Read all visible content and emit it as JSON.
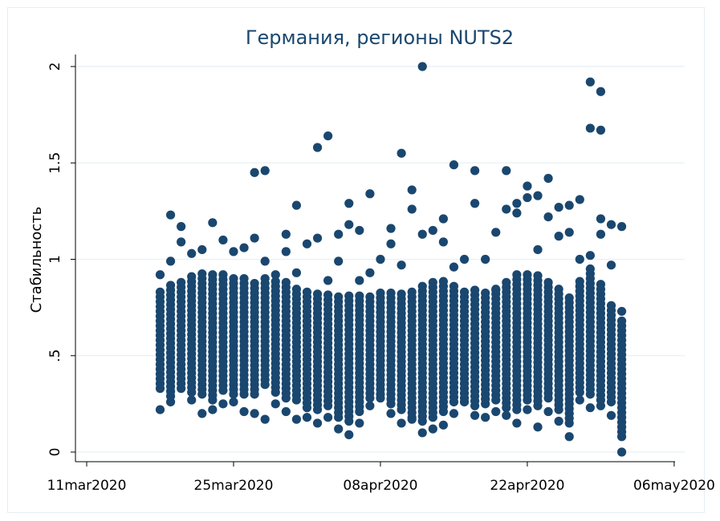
{
  "chart_data": {
    "type": "scatter",
    "title": "Германия, регионы NUTS2",
    "ylabel": "Стабильность",
    "xlabel": "",
    "x_ticks": [
      "11mar2020",
      "25mar2020",
      "08apr2020",
      "22apr2020",
      "06may2020"
    ],
    "y_ticks": [
      "0",
      ".5",
      "1",
      "1.5",
      "2"
    ],
    "xlim": [
      "2020-03-10",
      "2020-05-06"
    ],
    "ylim": [
      0,
      2.05
    ],
    "grid": "horizontal",
    "marker_color": "#1a476f",
    "series": [
      {
        "points": [
          [
            "2020-03-18",
            0.92
          ],
          [
            "2020-03-18",
            0.22
          ],
          [
            "2020-03-19",
            1.23
          ],
          [
            "2020-03-19",
            0.99
          ],
          [
            "2020-03-19",
            0.26
          ],
          [
            "2020-03-20",
            1.17
          ],
          [
            "2020-03-20",
            1.09
          ],
          [
            "2020-03-21",
            1.03
          ],
          [
            "2020-03-21",
            0.27
          ],
          [
            "2020-03-22",
            1.05
          ],
          [
            "2020-03-22",
            0.2
          ],
          [
            "2020-03-23",
            1.19
          ],
          [
            "2020-03-23",
            0.22
          ],
          [
            "2020-03-24",
            1.1
          ],
          [
            "2020-03-24",
            0.25
          ],
          [
            "2020-03-25",
            1.04
          ],
          [
            "2020-03-25",
            0.26
          ],
          [
            "2020-03-26",
            1.06
          ],
          [
            "2020-03-26",
            0.21
          ],
          [
            "2020-03-27",
            1.11
          ],
          [
            "2020-03-27",
            1.45
          ],
          [
            "2020-03-27",
            0.2
          ],
          [
            "2020-03-28",
            1.46
          ],
          [
            "2020-03-28",
            0.99
          ],
          [
            "2020-03-28",
            0.17
          ],
          [
            "2020-03-29",
            0.92
          ],
          [
            "2020-03-29",
            0.25
          ],
          [
            "2020-03-30",
            1.13
          ],
          [
            "2020-03-30",
            1.04
          ],
          [
            "2020-03-30",
            0.21
          ],
          [
            "2020-03-31",
            1.28
          ],
          [
            "2020-03-31",
            0.93
          ],
          [
            "2020-03-31",
            0.17
          ],
          [
            "2020-04-01",
            1.08
          ],
          [
            "2020-04-01",
            0.18
          ],
          [
            "2020-04-02",
            1.58
          ],
          [
            "2020-04-02",
            1.11
          ],
          [
            "2020-04-02",
            0.15
          ],
          [
            "2020-04-03",
            1.64
          ],
          [
            "2020-04-03",
            0.89
          ],
          [
            "2020-04-03",
            0.18
          ],
          [
            "2020-04-04",
            1.13
          ],
          [
            "2020-04-04",
            0.99
          ],
          [
            "2020-04-04",
            0.12
          ],
          [
            "2020-04-05",
            1.29
          ],
          [
            "2020-04-05",
            1.18
          ],
          [
            "2020-04-05",
            0.09
          ],
          [
            "2020-04-06",
            1.15
          ],
          [
            "2020-04-06",
            0.89
          ],
          [
            "2020-04-06",
            0.15
          ],
          [
            "2020-04-07",
            1.34
          ],
          [
            "2020-04-07",
            0.93
          ],
          [
            "2020-04-07",
            0.24
          ],
          [
            "2020-04-08",
            1.0
          ],
          [
            "2020-04-08",
            0.28
          ],
          [
            "2020-04-09",
            1.16
          ],
          [
            "2020-04-09",
            1.08
          ],
          [
            "2020-04-09",
            0.2
          ],
          [
            "2020-04-10",
            1.55
          ],
          [
            "2020-04-10",
            0.97
          ],
          [
            "2020-04-10",
            0.15
          ],
          [
            "2020-04-11",
            1.36
          ],
          [
            "2020-04-11",
            1.26
          ],
          [
            "2020-04-11",
            0.17
          ],
          [
            "2020-04-12",
            2.0
          ],
          [
            "2020-04-12",
            1.13
          ],
          [
            "2020-04-12",
            0.1
          ],
          [
            "2020-04-13",
            1.15
          ],
          [
            "2020-04-13",
            0.12
          ],
          [
            "2020-04-14",
            1.21
          ],
          [
            "2020-04-14",
            1.09
          ],
          [
            "2020-04-14",
            0.14
          ],
          [
            "2020-04-15",
            1.49
          ],
          [
            "2020-04-15",
            0.96
          ],
          [
            "2020-04-15",
            0.2
          ],
          [
            "2020-04-16",
            1.0
          ],
          [
            "2020-04-16",
            0.26
          ],
          [
            "2020-04-17",
            1.46
          ],
          [
            "2020-04-17",
            1.29
          ],
          [
            "2020-04-17",
            0.19
          ],
          [
            "2020-04-18",
            1.0
          ],
          [
            "2020-04-18",
            0.18
          ],
          [
            "2020-04-19",
            1.14
          ],
          [
            "2020-04-19",
            0.84
          ],
          [
            "2020-04-19",
            0.21
          ],
          [
            "2020-04-20",
            1.46
          ],
          [
            "2020-04-20",
            1.26
          ],
          [
            "2020-04-20",
            0.19
          ],
          [
            "2020-04-21",
            1.29
          ],
          [
            "2020-04-21",
            1.24
          ],
          [
            "2020-04-21",
            0.15
          ],
          [
            "2020-04-22",
            1.38
          ],
          [
            "2020-04-22",
            1.32
          ],
          [
            "2020-04-22",
            0.22
          ],
          [
            "2020-04-23",
            1.33
          ],
          [
            "2020-04-23",
            1.05
          ],
          [
            "2020-04-23",
            0.13
          ],
          [
            "2020-04-24",
            1.42
          ],
          [
            "2020-04-24",
            1.22
          ],
          [
            "2020-04-24",
            0.21
          ],
          [
            "2020-04-25",
            1.27
          ],
          [
            "2020-04-25",
            1.12
          ],
          [
            "2020-04-25",
            0.16
          ],
          [
            "2020-04-26",
            1.28
          ],
          [
            "2020-04-26",
            1.14
          ],
          [
            "2020-04-26",
            0.08
          ],
          [
            "2020-04-27",
            1.31
          ],
          [
            "2020-04-27",
            1.0
          ],
          [
            "2020-04-27",
            0.27
          ],
          [
            "2020-04-28",
            1.92
          ],
          [
            "2020-04-28",
            1.68
          ],
          [
            "2020-04-28",
            1.02
          ],
          [
            "2020-04-28",
            0.23
          ],
          [
            "2020-04-29",
            1.87
          ],
          [
            "2020-04-29",
            1.67
          ],
          [
            "2020-04-29",
            1.21
          ],
          [
            "2020-04-29",
            1.13
          ],
          [
            "2020-04-29",
            0.24
          ],
          [
            "2020-04-30",
            1.18
          ],
          [
            "2020-04-30",
            0.97
          ],
          [
            "2020-04-30",
            0.19
          ],
          [
            "2020-05-01",
            1.17
          ],
          [
            "2020-05-01",
            0.73
          ],
          [
            "2020-05-01",
            0.0
          ]
        ]
      }
    ]
  }
}
